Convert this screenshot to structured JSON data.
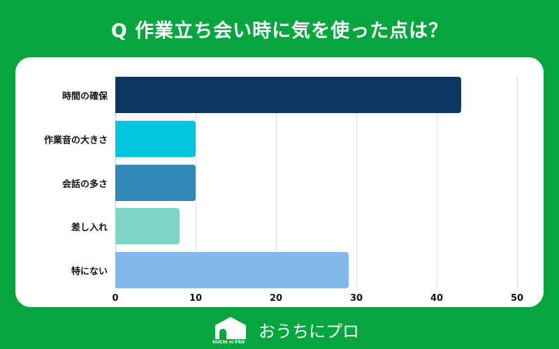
{
  "title": "Q 作業立ち会い時に気を使った点は？",
  "chart_data": {
    "type": "bar",
    "orientation": "horizontal",
    "title": "Q 作業立ち会い時に気を使った点は？",
    "categories": [
      "時間の確保",
      "作業音の大きさ",
      "会話の多さ",
      "差し入れ",
      "特にない"
    ],
    "values": [
      43,
      10,
      10,
      8,
      29
    ],
    "colors": [
      "#0e3766",
      "#00c8de",
      "#2f88b8",
      "#7fd4c8",
      "#82b9ed"
    ],
    "xlabel": "",
    "ylabel": "",
    "xlim": [
      0,
      50
    ],
    "xticks": [
      0,
      10,
      20,
      30,
      40,
      50
    ],
    "grid": true,
    "legend": "none"
  },
  "ticks": [
    "0",
    "10",
    "20",
    "30",
    "40",
    "50"
  ],
  "logo": {
    "text": "おうちにプロ",
    "sub": "OUCHI ni PRO"
  }
}
